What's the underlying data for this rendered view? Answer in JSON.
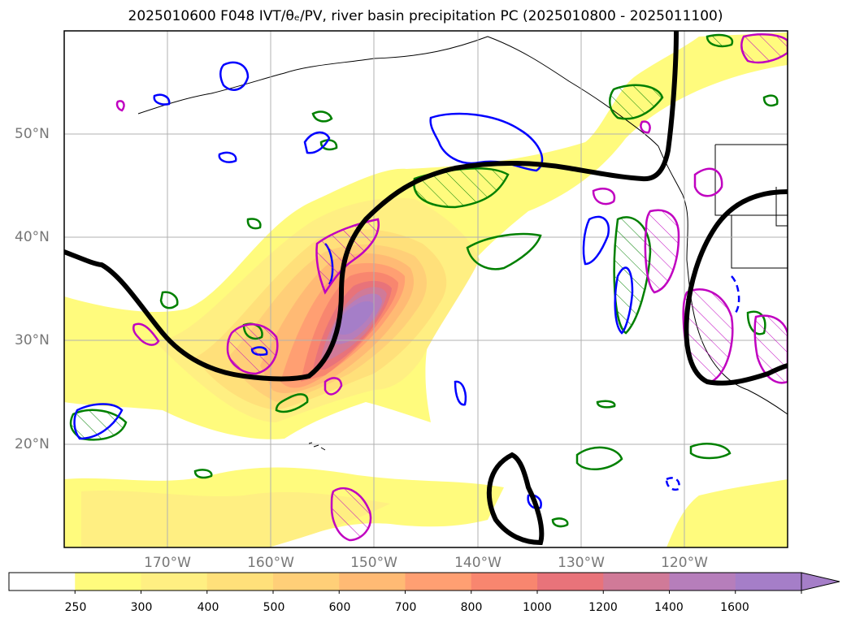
{
  "title": "2025010600 F048 IVT/θₑ/PV, river basin precipitation PC (2025010800 - 2025011100)",
  "lat_labels": [
    "50°N",
    "40°N",
    "30°N",
    "20°N"
  ],
  "lon_labels": [
    "170°W",
    "160°W",
    "150°W",
    "140°W",
    "130°W",
    "120°W"
  ],
  "colorbar": {
    "levels": [
      "250",
      "300",
      "400",
      "500",
      "600",
      "700",
      "800",
      "1000",
      "1200",
      "1400",
      "1600"
    ],
    "colors": [
      "#ffffff",
      "#fffb7d",
      "#ffef82",
      "#ffe07a",
      "#ffcf78",
      "#ffba74",
      "#ff9f72",
      "#f8866f",
      "#e8737a",
      "#d07a98",
      "#b67ebb",
      "#a57ec8"
    ],
    "extend": "max"
  },
  "contour_colors": {
    "theta_e_line": "#000000",
    "green_contour": "#008000",
    "blue_contour": "#0000ff",
    "magenta_contour": "#c000c0"
  }
}
